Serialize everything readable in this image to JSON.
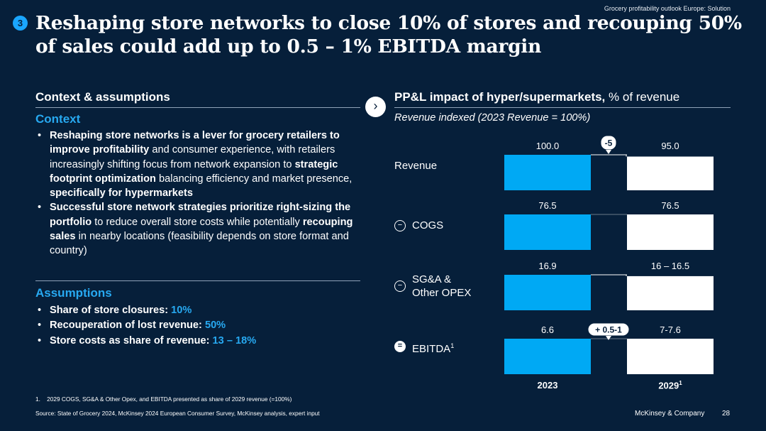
{
  "header": {
    "breadcrumb": "Grocery profitability outlook Europe: Solution",
    "badge_number": "3",
    "title": "Reshaping store networks to close 10% of stores and recouping 50% of sales could add up to 0.5 – 1% EBITDA margin"
  },
  "left": {
    "section_title": "Context & assumptions",
    "context_heading": "Context",
    "context_bullets": [
      [
        {
          "t": "Reshaping store networks is a lever for grocery retailers to improve profitability",
          "s": "b"
        },
        {
          "t": " and consumer experience, with retailers increasingly shifting focus from network expansion to ",
          "s": ""
        },
        {
          "t": "strategic footprint optimization",
          "s": "b"
        },
        {
          "t": " balancing efficiency and market presence, ",
          "s": ""
        },
        {
          "t": "specifically for hypermarkets",
          "s": "b"
        }
      ],
      [
        {
          "t": "Successful store network strategies prioritize right-sizing the portfolio",
          "s": "b"
        },
        {
          "t": " to reduce overall store costs while potentially ",
          "s": ""
        },
        {
          "t": "recouping sales",
          "s": "b"
        },
        {
          "t": " in nearby locations (feasibility depends on store format and country)",
          "s": ""
        }
      ]
    ],
    "assumptions_heading": "Assumptions",
    "assumptions_bullets": [
      [
        {
          "t": "Share of store closures: ",
          "s": "b"
        },
        {
          "t": "10%",
          "s": "hl"
        }
      ],
      [
        {
          "t": "Recouperation of lost revenue: ",
          "s": "b"
        },
        {
          "t": "50%",
          "s": "hl"
        }
      ],
      [
        {
          "t": "Store costs as share of revenue: ",
          "s": "b"
        },
        {
          "t": "13 – 18%",
          "s": "hl"
        }
      ]
    ]
  },
  "right": {
    "title_bold": "PP&L impact of hyper/supermarkets,",
    "title_regular": " % of revenue",
    "subtitle": "Revenue indexed (2023 Revenue = 100%)"
  },
  "chart_data": {
    "type": "bar",
    "categories": [
      "Revenue",
      "COGS",
      "SG&A & Other OPEX",
      "EBITDA"
    ],
    "row_labels": [
      {
        "lines": [
          "Revenue"
        ],
        "operator": "",
        "sup": ""
      },
      {
        "lines": [
          "COGS"
        ],
        "operator": "−",
        "sup": ""
      },
      {
        "lines": [
          "SG&A &",
          "Other OPEX"
        ],
        "operator": "−",
        "sup": ""
      },
      {
        "lines": [
          "EBITDA"
        ],
        "operator": "=",
        "sup": "1"
      }
    ],
    "series": [
      {
        "name": "2023",
        "sup": "",
        "values": [
          100.0,
          76.5,
          16.9,
          6.6
        ],
        "labels": [
          "100.0",
          "76.5",
          "16.9",
          "6.6"
        ],
        "color": "#00a9f4"
      },
      {
        "name": "2029",
        "sup": "1",
        "values": [
          95.0,
          76.5,
          16.25,
          7.3
        ],
        "labels": [
          "95.0",
          "76.5",
          "16 – 16.5",
          "7-7.6"
        ],
        "color": "#ffffff"
      }
    ],
    "deltas": [
      {
        "category": "Revenue",
        "label": "-5"
      },
      {
        "category": "EBITDA",
        "label": "+ 0.5-1"
      }
    ],
    "note": "Bars are scaled within each row; row scale caps at the 2023 value"
  },
  "footer": {
    "footnote_number": "1.",
    "footnote": "2029 COGS, SG&A & Other Opex, and EBITDA presented as share of 2029 revenue (=100%)",
    "source": "Source: State of Grocery 2024, McKinsey 2024 European Consumer Survey, McKinsey analysis, expert input",
    "brand": "McKinsey & Company",
    "page_number": "28"
  }
}
